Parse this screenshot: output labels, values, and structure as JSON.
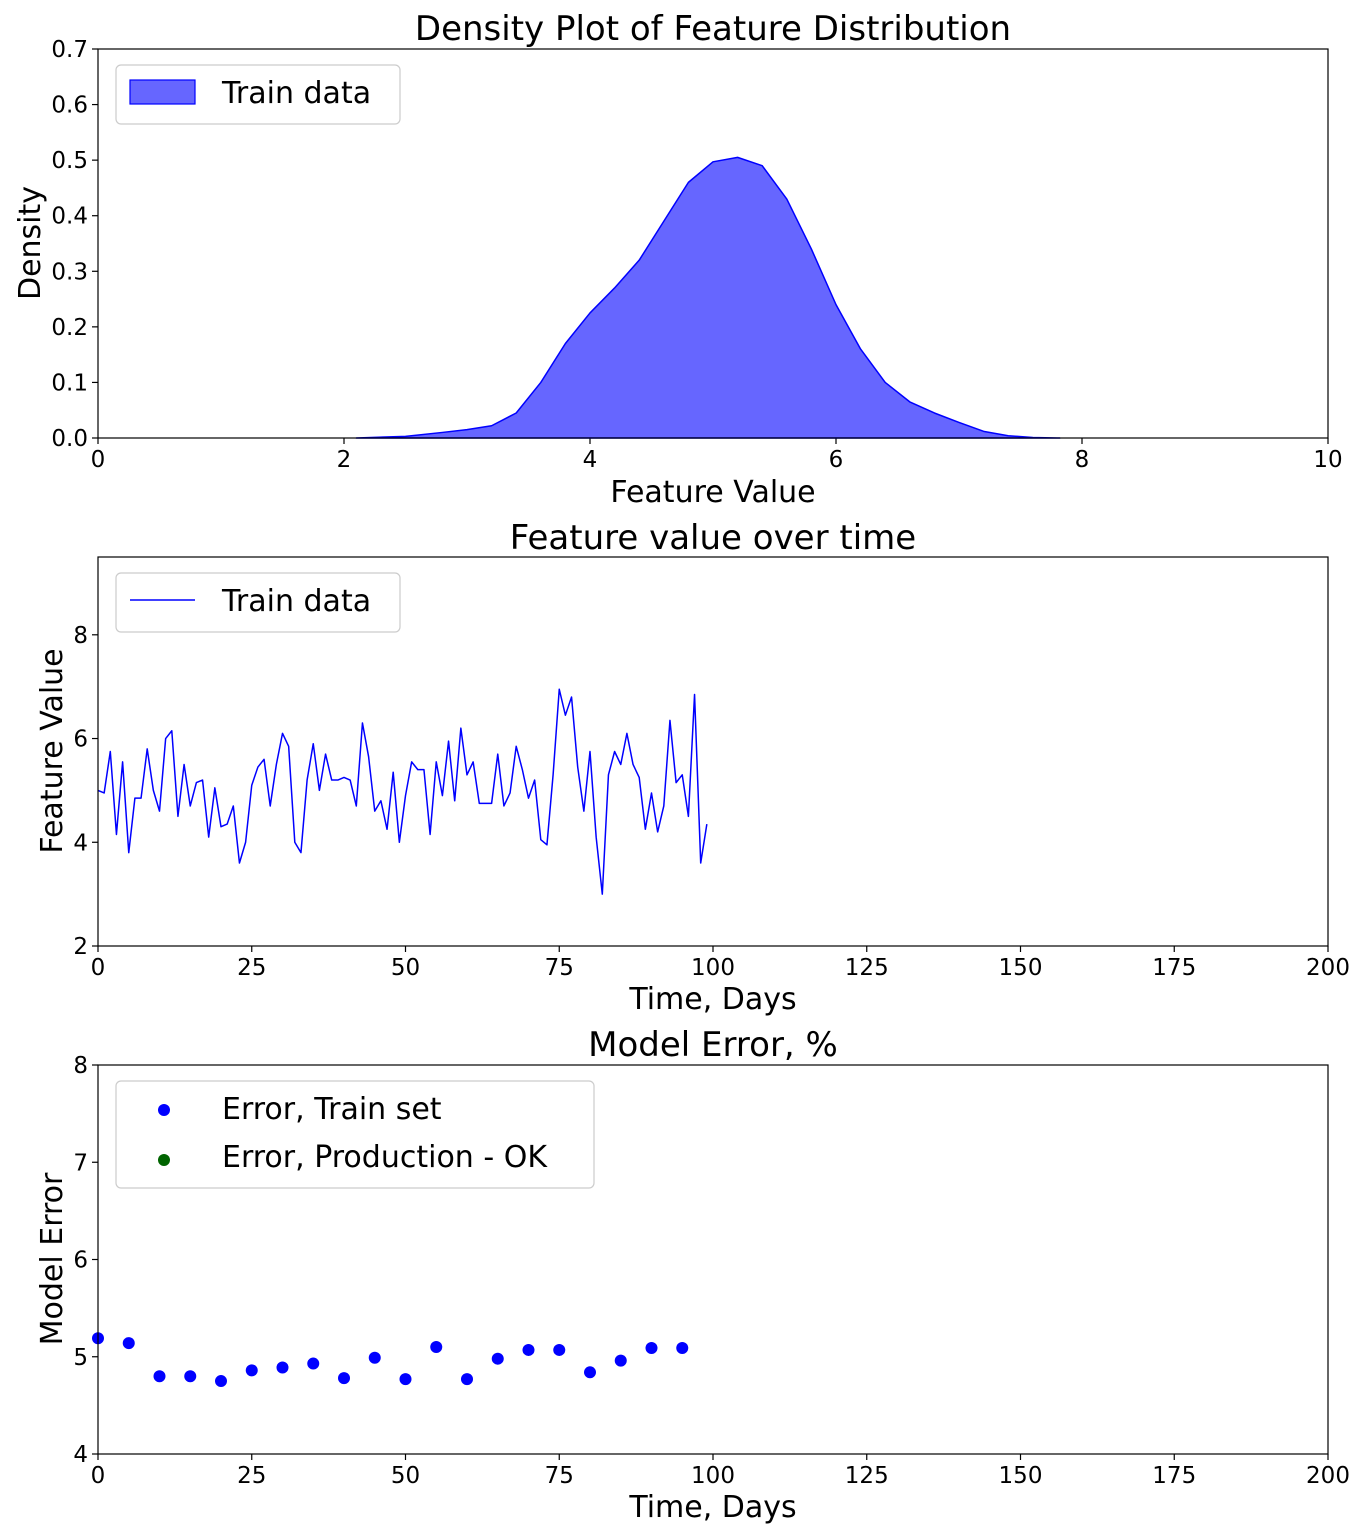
{
  "chart_data": [
    {
      "type": "area",
      "title": "Density Plot of Feature Distribution",
      "xlabel": "Feature Value",
      "ylabel": "Density",
      "xlim": [
        0,
        10
      ],
      "ylim": [
        0,
        0.7
      ],
      "xticks": [
        "0",
        "2",
        "4",
        "6",
        "8",
        "10"
      ],
      "yticks": [
        "0.0",
        "0.1",
        "0.2",
        "0.3",
        "0.4",
        "0.5",
        "0.6",
        "0.7"
      ],
      "legend": {
        "placement": "top-left",
        "entries": [
          "Train data"
        ]
      },
      "grid": false,
      "colors": {
        "fill": "#6666ff",
        "edge": "#0000ff"
      },
      "series": [
        {
          "name": "Train data",
          "x": [
            2.1,
            2.5,
            2.8,
            3.0,
            3.2,
            3.4,
            3.6,
            3.8,
            4.0,
            4.2,
            4.4,
            4.6,
            4.8,
            5.0,
            5.2,
            5.4,
            5.6,
            5.8,
            6.0,
            6.2,
            6.4,
            6.6,
            6.8,
            7.0,
            7.2,
            7.4,
            7.6,
            7.8,
            7.82
          ],
          "values": [
            0.0,
            0.003,
            0.01,
            0.015,
            0.022,
            0.045,
            0.1,
            0.17,
            0.225,
            0.27,
            0.32,
            0.39,
            0.46,
            0.497,
            0.505,
            0.49,
            0.43,
            0.34,
            0.24,
            0.16,
            0.1,
            0.065,
            0.045,
            0.028,
            0.012,
            0.004,
            0.001,
            0.0,
            0.0
          ]
        }
      ]
    },
    {
      "type": "line",
      "title": "Feature value over time",
      "xlabel": "Time, Days",
      "ylabel": "Feature Value",
      "xlim": [
        0,
        200
      ],
      "ylim": [
        2,
        9.5
      ],
      "xticks": [
        "0",
        "25",
        "50",
        "75",
        "100",
        "125",
        "150",
        "175",
        "200"
      ],
      "yticks": [
        "2",
        "4",
        "6",
        "8"
      ],
      "legend": {
        "placement": "top-left",
        "entries": [
          "Train data"
        ]
      },
      "grid": false,
      "colors": {
        "line": "#0000ff"
      },
      "series": [
        {
          "name": "Train data",
          "x": [
            0,
            1,
            2,
            3,
            4,
            5,
            6,
            7,
            8,
            9,
            10,
            11,
            12,
            13,
            14,
            15,
            16,
            17,
            18,
            19,
            20,
            21,
            22,
            23,
            24,
            25,
            26,
            27,
            28,
            29,
            30,
            31,
            32,
            33,
            34,
            35,
            36,
            37,
            38,
            39,
            40,
            41,
            42,
            43,
            44,
            45,
            46,
            47,
            48,
            49,
            50,
            51,
            52,
            53,
            54,
            55,
            56,
            57,
            58,
            59,
            60,
            61,
            62,
            63,
            64,
            65,
            66,
            67,
            68,
            69,
            70,
            71,
            72,
            73,
            74,
            75,
            76,
            77,
            78,
            79,
            80,
            81,
            82,
            83,
            84,
            85,
            86,
            87,
            88,
            89,
            90,
            91,
            92,
            93,
            94,
            95,
            96,
            97,
            98,
            99
          ],
          "values": [
            5.0,
            4.95,
            5.75,
            4.15,
            5.55,
            3.8,
            4.85,
            4.85,
            5.8,
            5.0,
            4.6,
            6.0,
            6.15,
            4.5,
            5.5,
            4.7,
            5.15,
            5.2,
            4.1,
            5.05,
            4.3,
            4.35,
            4.7,
            3.6,
            4.0,
            5.1,
            5.45,
            5.6,
            4.7,
            5.5,
            6.1,
            5.85,
            4.0,
            3.8,
            5.2,
            5.9,
            5.0,
            5.7,
            5.2,
            5.2,
            5.25,
            5.2,
            4.7,
            6.3,
            5.65,
            4.6,
            4.8,
            4.25,
            5.35,
            4.0,
            4.9,
            5.55,
            5.4,
            5.4,
            4.15,
            5.55,
            4.9,
            5.95,
            4.8,
            6.2,
            5.3,
            5.55,
            4.75,
            4.75,
            4.75,
            5.7,
            4.7,
            4.95,
            5.85,
            5.4,
            4.85,
            5.2,
            4.05,
            3.95,
            5.3,
            6.95,
            6.45,
            6.8,
            5.45,
            4.6,
            5.75,
            4.1,
            3.0,
            5.3,
            5.75,
            5.5,
            6.1,
            5.5,
            5.25,
            4.25,
            4.95,
            4.2,
            4.7,
            6.35,
            5.15,
            5.3,
            4.5,
            6.85,
            3.6,
            4.35
          ]
        }
      ]
    },
    {
      "type": "scatter",
      "title": "Model Error, %",
      "xlabel": "Time, Days",
      "ylabel": "Model Error",
      "xlim": [
        0,
        200
      ],
      "ylim": [
        4,
        8
      ],
      "xticks": [
        "0",
        "25",
        "50",
        "75",
        "100",
        "125",
        "150",
        "175",
        "200"
      ],
      "yticks": [
        "4",
        "5",
        "6",
        "7",
        "8"
      ],
      "legend": {
        "placement": "top-left",
        "entries": [
          "Error, Train set",
          "Error, Production - OK"
        ]
      },
      "grid": false,
      "colors": {
        "train": "#0000ff",
        "production": "#006400"
      },
      "series": [
        {
          "name": "Error, Train set",
          "x": [
            0,
            5,
            10,
            15,
            20,
            25,
            30,
            35,
            40,
            45,
            50,
            55,
            60,
            65,
            70,
            75,
            80,
            85,
            90,
            95
          ],
          "values": [
            5.19,
            5.14,
            4.8,
            4.8,
            4.75,
            4.86,
            4.89,
            4.93,
            4.78,
            4.99,
            4.77,
            5.1,
            4.77,
            4.98,
            5.07,
            5.07,
            4.84,
            4.96,
            5.09,
            5.09
          ]
        },
        {
          "name": "Error, Production - OK",
          "x": [],
          "values": []
        }
      ]
    }
  ]
}
